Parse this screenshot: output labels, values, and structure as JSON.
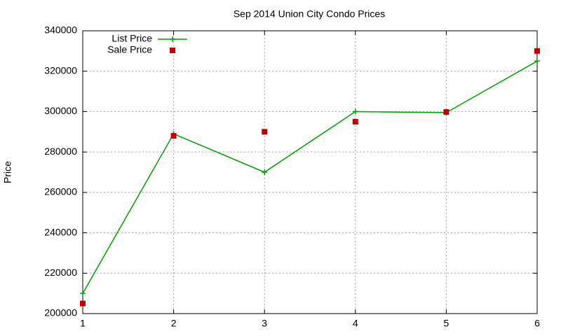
{
  "chart_data": {
    "type": "line",
    "title": "Sep 2014 Union City Condo Prices",
    "y_label": "Price",
    "x": [
      1,
      2,
      3,
      4,
      5,
      6
    ],
    "xlim": [
      1,
      6
    ],
    "xticks": [
      1,
      2,
      3,
      4,
      5,
      6
    ],
    "ylim": [
      200000,
      340000
    ],
    "yticks": [
      200000,
      220000,
      240000,
      260000,
      280000,
      300000,
      320000,
      340000
    ],
    "grid": true,
    "legend": "top-left",
    "series": [
      {
        "name": "List Price",
        "color": "#00a000",
        "style": "line",
        "values": [
          210000,
          289000,
          270000,
          300000,
          299500,
          325000
        ]
      },
      {
        "name": "Sale Price",
        "color": "#c00000",
        "style": "points",
        "values": [
          205000,
          288000,
          290000,
          295000,
          299800,
          330000
        ]
      }
    ]
  }
}
